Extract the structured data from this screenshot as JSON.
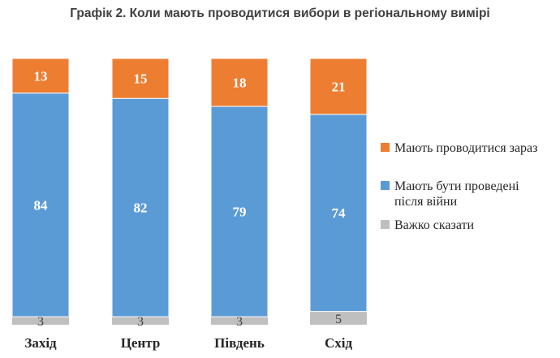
{
  "chart_data": {
    "type": "bar",
    "stacked": true,
    "title": "Графік 2. Коли мають проводитися вибори в регіональному вимірі",
    "categories": [
      "Захід",
      "Центр",
      "Південь",
      "Схід"
    ],
    "series": [
      {
        "name": "Важко сказати",
        "values": [
          3,
          3,
          3,
          5
        ],
        "color": "#BFBFBF"
      },
      {
        "name": "Мають бути проведені після війни",
        "values": [
          84,
          82,
          79,
          74
        ],
        "color": "#5B9BD5"
      },
      {
        "name": "Мають проводитися зараз",
        "values": [
          13,
          15,
          18,
          21
        ],
        "color": "#ED7D31"
      }
    ],
    "legend_order": [
      2,
      1,
      0
    ],
    "legend_lines": [
      [
        "Мають проводитися зараз"
      ],
      [
        "Мають бути проведені",
        "після війни"
      ],
      [
        "Важко сказати"
      ]
    ],
    "legend_position": "right",
    "ylim": [
      0,
      100
    ],
    "grid": false
  }
}
